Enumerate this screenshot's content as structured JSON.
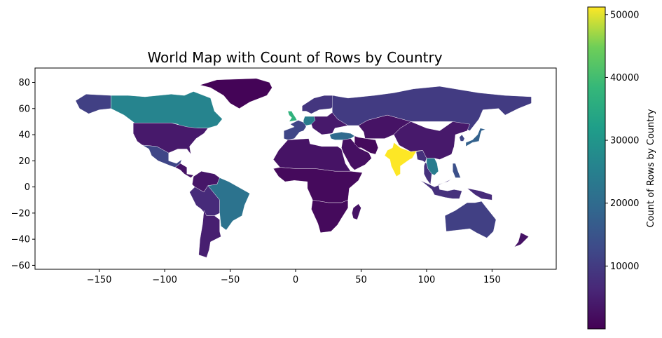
{
  "chart_data": {
    "type": "choropleth",
    "title": "World Map with Count of Rows by Country",
    "x_ticks": [
      -150,
      -100,
      -50,
      0,
      50,
      100,
      150
    ],
    "y_ticks": [
      -60,
      -40,
      -20,
      0,
      20,
      40,
      60,
      80
    ],
    "xlim": [
      -199,
      199
    ],
    "ylim": [
      -63,
      91
    ],
    "colorbar": {
      "label": "Count of Rows by Country",
      "range": [
        0,
        51200
      ],
      "ticks": [
        10000,
        20000,
        30000,
        40000,
        50000
      ],
      "colormap": "viridis"
    },
    "regions": [
      {
        "name": "Canada",
        "value": 26000
      },
      {
        "name": "United States",
        "value": 4000
      },
      {
        "name": "Alaska",
        "value": 11000
      },
      {
        "name": "Greenland",
        "value": 500
      },
      {
        "name": "Mexico",
        "value": 12000
      },
      {
        "name": "Central America",
        "value": 3000
      },
      {
        "name": "Colombia / Venezuela",
        "value": 3500
      },
      {
        "name": "Peru / Bolivia",
        "value": 7000
      },
      {
        "name": "Brazil",
        "value": 22000
      },
      {
        "name": "Argentina / Chile",
        "value": 5000
      },
      {
        "name": "United Kingdom",
        "value": 37000
      },
      {
        "name": "Western Europe",
        "value": 12000
      },
      {
        "name": "Germany",
        "value": 24000
      },
      {
        "name": "Scandinavia",
        "value": 9000
      },
      {
        "name": "Eastern Europe",
        "value": 4000
      },
      {
        "name": "Turkey",
        "value": 20000
      },
      {
        "name": "Russia",
        "value": 10000
      },
      {
        "name": "Kazakhstan / Central Asia",
        "value": 3000
      },
      {
        "name": "China",
        "value": 4000
      },
      {
        "name": "Middle East",
        "value": 2500
      },
      {
        "name": "Iran",
        "value": 1500
      },
      {
        "name": "India",
        "value": 51200
      },
      {
        "name": "Southeast Asia",
        "value": 8000
      },
      {
        "name": "Thailand / Vietnam",
        "value": 24000
      },
      {
        "name": "Japan",
        "value": 18000
      },
      {
        "name": "Korea",
        "value": 12000
      },
      {
        "name": "Indonesia",
        "value": 8000
      },
      {
        "name": "Philippines",
        "value": 14000
      },
      {
        "name": "Papua New Guinea",
        "value": 7000
      },
      {
        "name": "North Africa",
        "value": 3000
      },
      {
        "name": "Sub-Saharan Africa",
        "value": 1500
      },
      {
        "name": "Southern Africa",
        "value": 1500
      },
      {
        "name": "Madagascar",
        "value": 3000
      },
      {
        "name": "Australia",
        "value": 11000
      },
      {
        "name": "New Zealand",
        "value": 3000
      }
    ]
  }
}
